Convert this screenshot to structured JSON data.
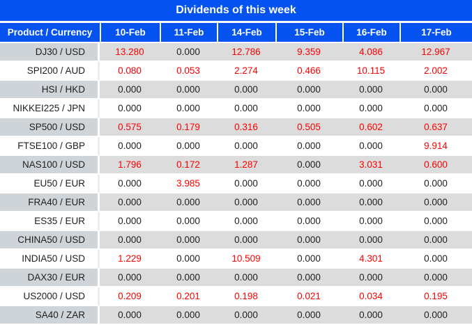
{
  "ui": {
    "title": "Dividends of this week",
    "colors": {
      "header_bg": "#0452f0",
      "header_text": "#ffffff",
      "alt_row_bg": "#dcdcdc",
      "alt_row_label_bg": "#cfd4d9",
      "value_positive": "#fe0000",
      "value_zero": "#1e1e1e"
    }
  },
  "chart_data": {
    "type": "table",
    "title": "Dividends of this week",
    "row_header_label": "Product / Currency",
    "columns": [
      "10-Feb",
      "11-Feb",
      "14-Feb",
      "15-Feb",
      "16-Feb",
      "17-Feb"
    ],
    "rows": [
      {
        "product": "DJ30 / USD",
        "values": [
          13.28,
          0.0,
          12.786,
          9.359,
          4.086,
          12.967
        ]
      },
      {
        "product": "SPI200 / AUD",
        "values": [
          0.08,
          0.053,
          2.274,
          0.466,
          10.115,
          2.002
        ]
      },
      {
        "product": "HSI / HKD",
        "values": [
          0.0,
          0.0,
          0.0,
          0.0,
          0.0,
          0.0
        ]
      },
      {
        "product": "NIKKEI225 / JPN",
        "values": [
          0.0,
          0.0,
          0.0,
          0.0,
          0.0,
          0.0
        ]
      },
      {
        "product": "SP500 / USD",
        "values": [
          0.575,
          0.179,
          0.316,
          0.505,
          0.602,
          0.637
        ]
      },
      {
        "product": "FTSE100 / GBP",
        "values": [
          0.0,
          0.0,
          0.0,
          0.0,
          0.0,
          9.914
        ]
      },
      {
        "product": "NAS100 / USD",
        "values": [
          1.796,
          0.172,
          1.287,
          0.0,
          3.031,
          0.6
        ]
      },
      {
        "product": "EU50 / EUR",
        "values": [
          0.0,
          3.985,
          0.0,
          0.0,
          0.0,
          0.0
        ]
      },
      {
        "product": "FRA40 / EUR",
        "values": [
          0.0,
          0.0,
          0.0,
          0.0,
          0.0,
          0.0
        ]
      },
      {
        "product": "ES35 / EUR",
        "values": [
          0.0,
          0.0,
          0.0,
          0.0,
          0.0,
          0.0
        ]
      },
      {
        "product": "CHINA50 / USD",
        "values": [
          0.0,
          0.0,
          0.0,
          0.0,
          0.0,
          0.0
        ]
      },
      {
        "product": "INDIA50 / USD",
        "values": [
          1.229,
          0.0,
          10.509,
          0.0,
          4.301,
          0.0
        ]
      },
      {
        "product": "DAX30 / EUR",
        "values": [
          0.0,
          0.0,
          0.0,
          0.0,
          0.0,
          0.0
        ]
      },
      {
        "product": "US2000 / USD",
        "values": [
          0.209,
          0.201,
          0.198,
          0.021,
          0.034,
          0.195
        ]
      },
      {
        "product": "SA40 / ZAR",
        "values": [
          0.0,
          0.0,
          0.0,
          0.0,
          0.0,
          0.0
        ]
      }
    ]
  }
}
